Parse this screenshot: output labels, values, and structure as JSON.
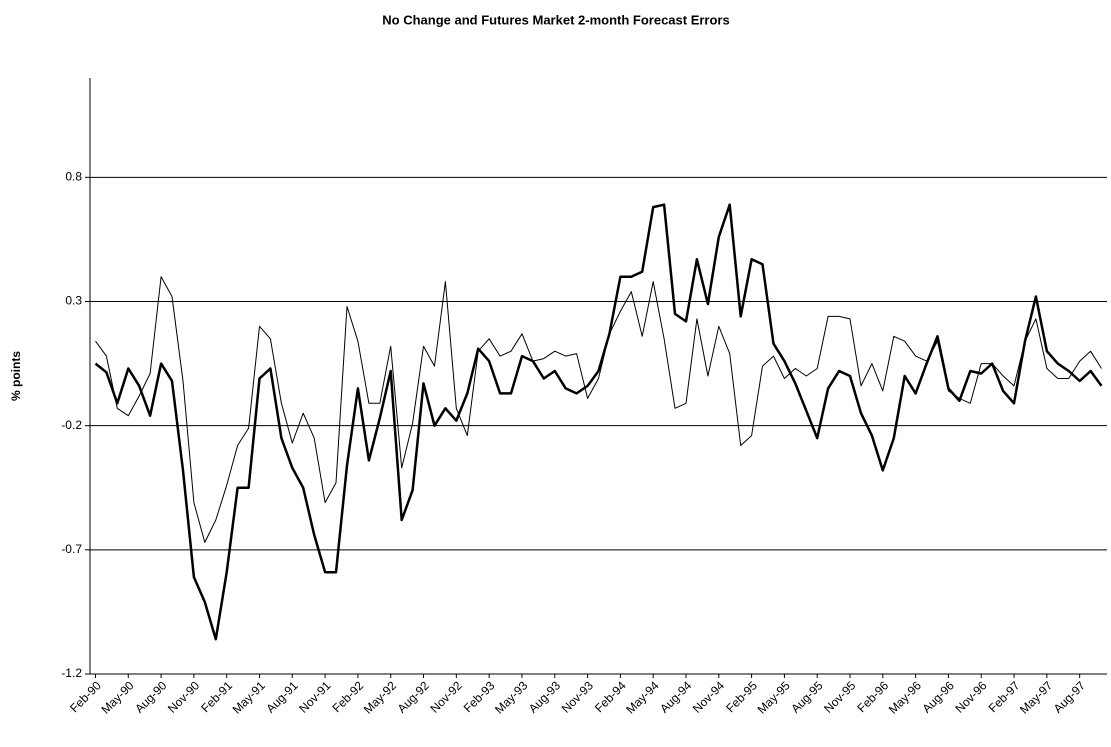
{
  "chart_data": {
    "type": "line",
    "title": "No Change and Futures Market 2-month Forecast Errors",
    "y_label": "% points",
    "categories": [
      "Feb-90",
      null,
      null,
      "May-90",
      null,
      null,
      "Aug-90",
      null,
      null,
      "Nov-90",
      null,
      null,
      "Feb-91",
      null,
      null,
      "May-91",
      null,
      null,
      "Aug-91",
      null,
      null,
      "Nov-91",
      null,
      null,
      "Feb-92",
      null,
      null,
      "May-92",
      null,
      null,
      "Aug-92",
      null,
      null,
      "Nov-92",
      null,
      null,
      "Feb-93",
      null,
      null,
      "May-93",
      null,
      null,
      "Aug-93",
      null,
      null,
      "Nov-93",
      null,
      null,
      "Feb-94",
      null,
      null,
      "May-94",
      null,
      null,
      "Aug-94",
      null,
      null,
      "Nov-94",
      null,
      null,
      "Feb-95",
      null,
      null,
      "May-95",
      null,
      null,
      "Aug-95",
      null,
      null,
      "Nov-95",
      null,
      null,
      "Feb-96",
      null,
      null,
      "May-96",
      null,
      null,
      "Aug-96",
      null,
      null,
      "Nov-96",
      null,
      null,
      "Feb-97",
      null,
      null,
      "May-97",
      null,
      null,
      "Aug-97",
      null,
      null
    ],
    "series": [
      {
        "color": "#000000",
        "width": 2.5,
        "values": [
          0.05,
          0.015,
          -0.11,
          0.03,
          -0.04,
          -0.16,
          0.05,
          -0.02,
          -0.38,
          -0.81,
          -0.91,
          -1.06,
          -0.79,
          -0.45,
          -0.45,
          -0.01,
          0.03,
          -0.25,
          -0.37,
          -0.45,
          -0.64,
          -0.79,
          -0.79,
          -0.36,
          -0.05,
          -0.34,
          -0.17,
          0.02,
          -0.58,
          -0.46,
          -0.03,
          -0.2,
          -0.13,
          -0.18,
          -0.07,
          0.11,
          0.06,
          -0.07,
          -0.07,
          0.08,
          0.06,
          -0.01,
          0.02,
          -0.05,
          -0.07,
          -0.04,
          0.02,
          0.17,
          0.4,
          0.4,
          0.42,
          0.68,
          0.69,
          0.25,
          0.22,
          0.47,
          0.29,
          0.56,
          0.69,
          0.24,
          0.47,
          0.45,
          0.13,
          0.06,
          -0.03,
          -0.14,
          -0.25,
          -0.05,
          0.02,
          0.0,
          -0.15,
          -0.24,
          -0.38,
          -0.25,
          0.0,
          -0.07,
          0.05,
          0.16,
          -0.05,
          -0.1,
          0.02,
          0.01,
          0.05,
          -0.06,
          -0.11,
          0.14,
          0.32,
          0.1,
          0.05,
          0.02,
          -0.02,
          0.02,
          -0.04
        ]
      },
      {
        "color": "#000000",
        "width": 1,
        "values": [
          0.14,
          0.08,
          -0.13,
          -0.16,
          -0.08,
          0.01,
          0.4,
          0.32,
          -0.02,
          -0.51,
          -0.67,
          -0.58,
          -0.44,
          -0.28,
          -0.21,
          0.2,
          0.15,
          -0.11,
          -0.27,
          -0.15,
          -0.25,
          -0.51,
          -0.43,
          0.28,
          0.14,
          -0.11,
          -0.11,
          0.12,
          -0.37,
          -0.19,
          0.12,
          0.04,
          0.38,
          -0.13,
          -0.24,
          0.1,
          0.15,
          0.08,
          0.1,
          0.17,
          0.06,
          0.07,
          0.1,
          0.08,
          0.09,
          -0.09,
          -0.01,
          0.17,
          0.26,
          0.34,
          0.16,
          0.38,
          0.15,
          -0.13,
          -0.11,
          0.23,
          0.0,
          0.2,
          0.09,
          -0.28,
          -0.24,
          0.04,
          0.08,
          -0.01,
          0.03,
          0.0,
          0.03,
          0.24,
          0.24,
          0.23,
          -0.04,
          0.05,
          -0.06,
          0.16,
          0.14,
          0.08,
          0.06,
          0.14,
          -0.06,
          -0.09,
          -0.11,
          0.05,
          0.05,
          0.0,
          -0.04,
          0.14,
          0.23,
          0.03,
          -0.01,
          -0.01,
          0.06,
          0.1,
          0.03
        ]
      }
    ],
    "ylim": [
      -1.2,
      1.2
    ],
    "yticks": [
      -1.2,
      -0.7,
      -0.2,
      0.3,
      0.8
    ],
    "grid": true
  }
}
